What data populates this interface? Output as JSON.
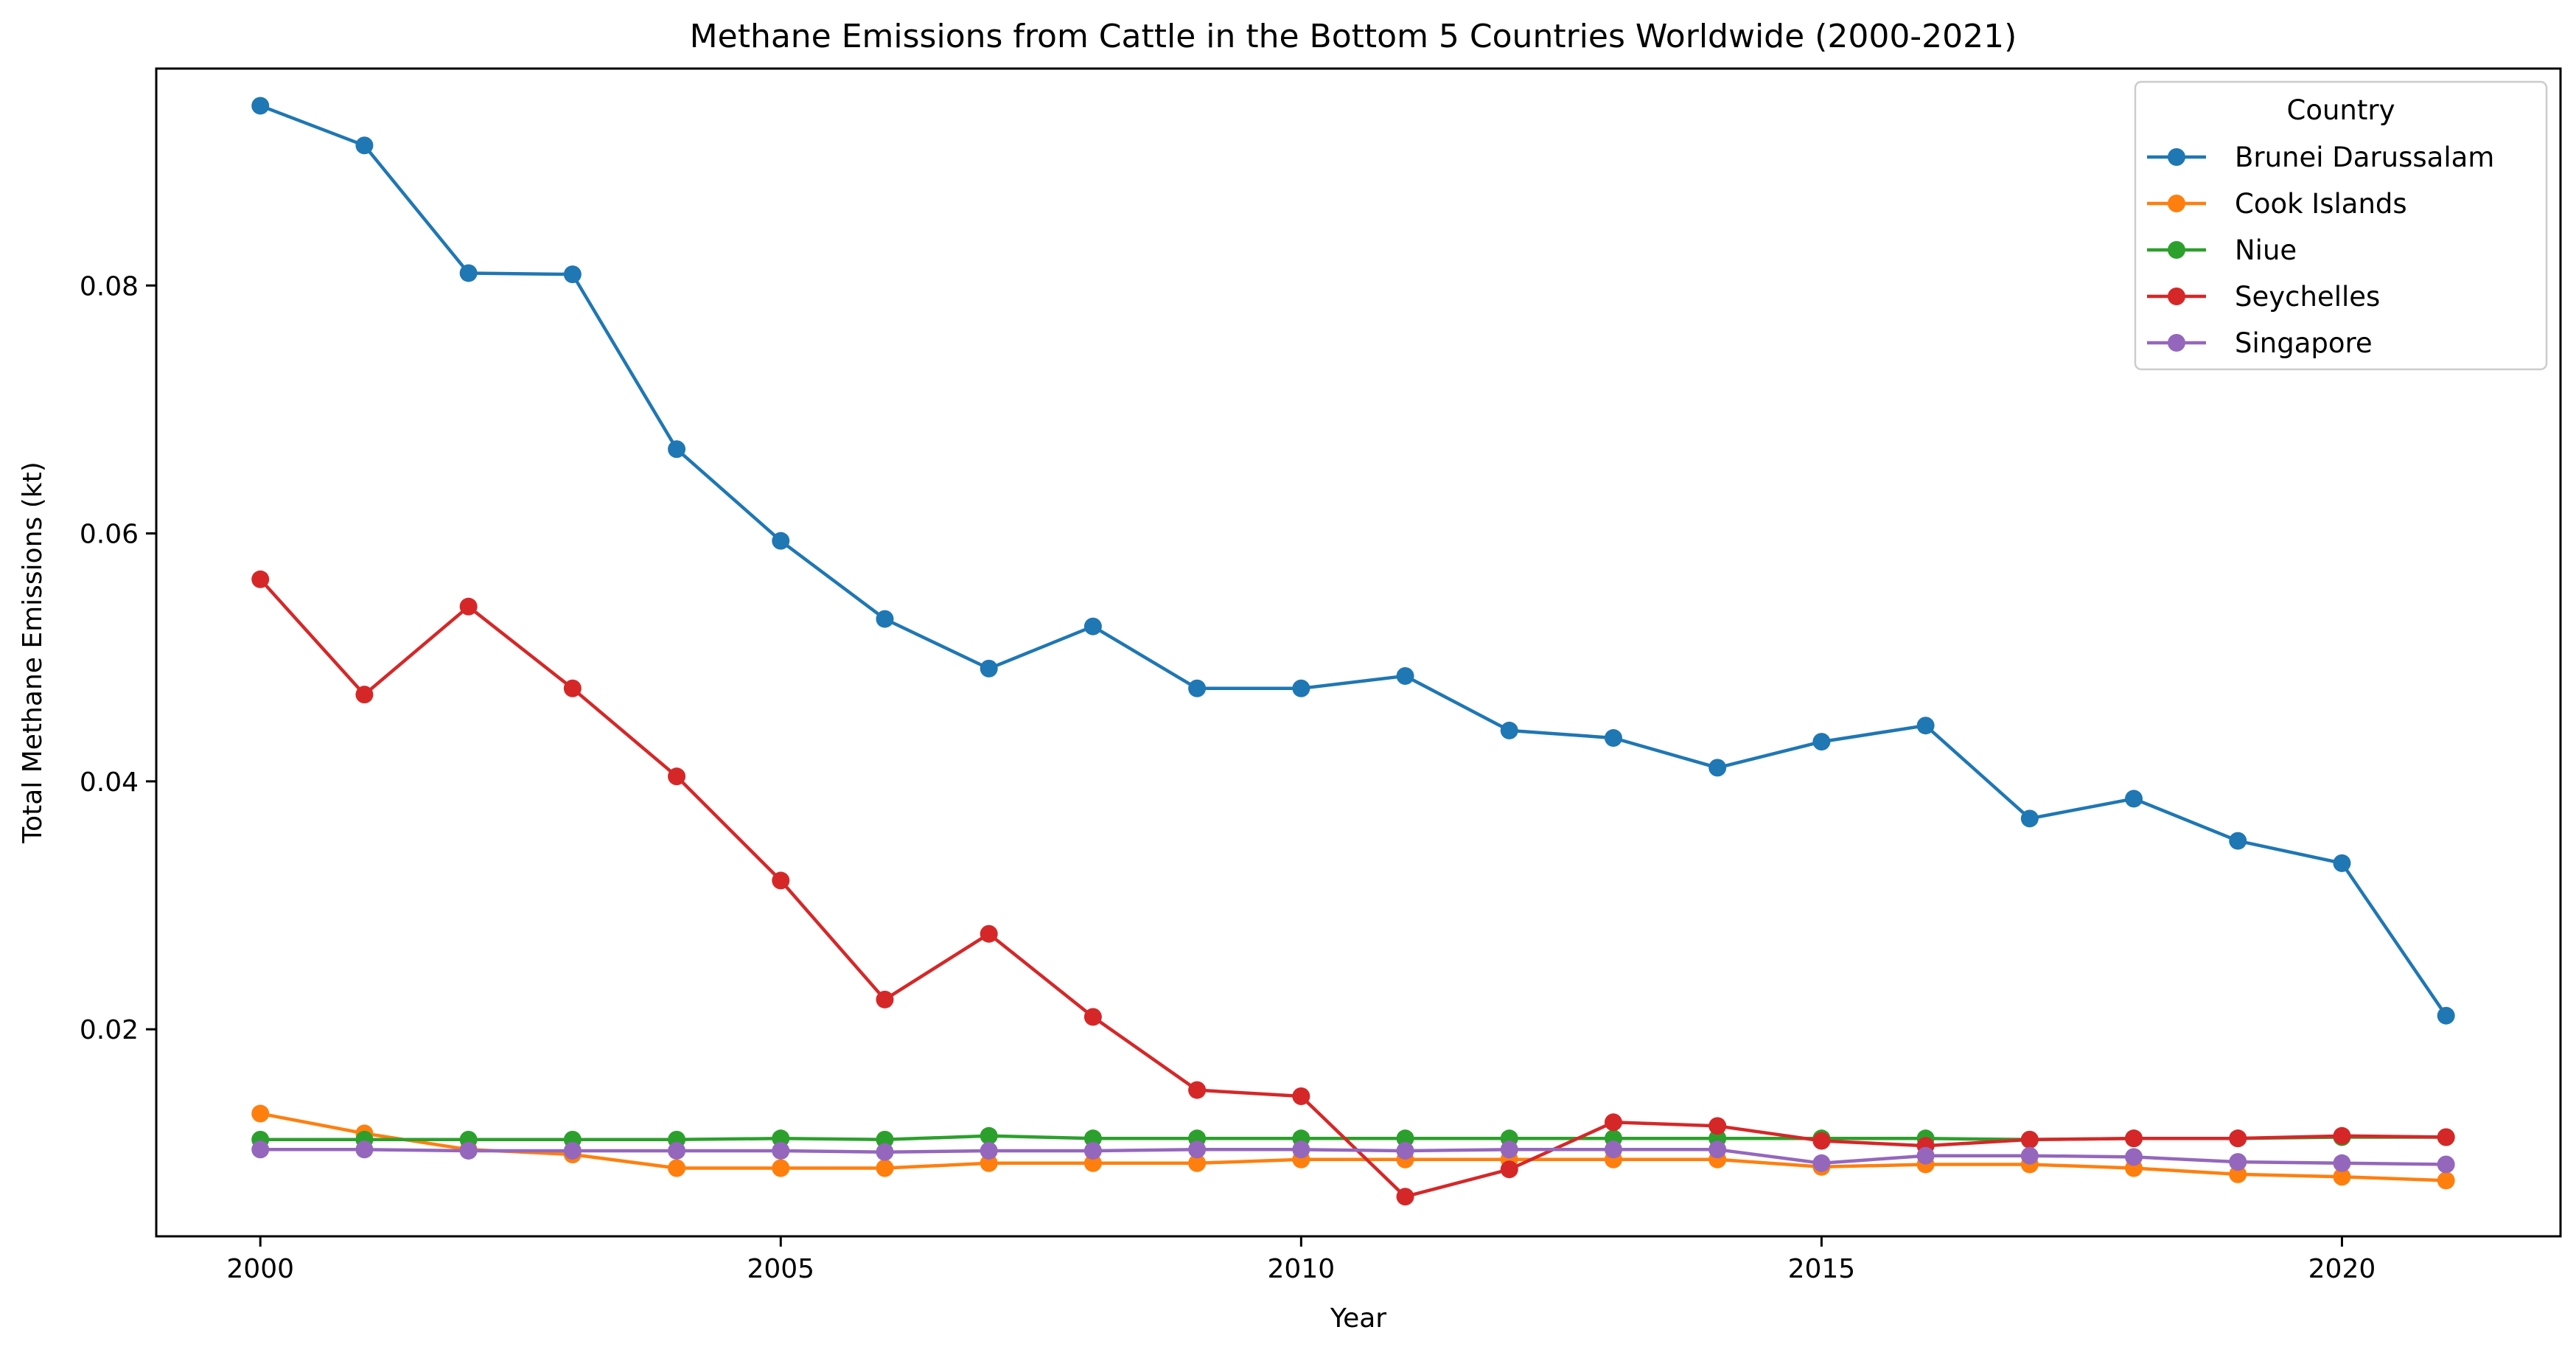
{
  "chart_data": {
    "type": "line",
    "title": "Methane Emissions from Cattle in the Bottom 5 Countries Worldwide (2000-2021)",
    "xlabel": "Year",
    "ylabel": "Total Methane Emissions (kt)",
    "xlim": [
      1999,
      2022.1
    ],
    "ylim": [
      0.0033,
      0.0975
    ],
    "xticks": [
      2000,
      2005,
      2010,
      2015,
      2020
    ],
    "xtick_labels": [
      "2000",
      "2005",
      "2010",
      "2015",
      "2020"
    ],
    "yticks": [
      0.02,
      0.04,
      0.06,
      0.08
    ],
    "ytick_labels": [
      "0.02",
      "0.04",
      "0.06",
      "0.08"
    ],
    "grid": false,
    "legend": {
      "title": "Country",
      "position": "top-right"
    },
    "x": [
      2000,
      2001,
      2002,
      2003,
      2004,
      2005,
      2006,
      2007,
      2008,
      2009,
      2010,
      2011,
      2012,
      2013,
      2014,
      2015,
      2016,
      2017,
      2018,
      2019,
      2020,
      2021
    ],
    "series": [
      {
        "name": "Brunei Darussalam",
        "color": "#1f77b4",
        "values": [
          0.0945,
          0.0913,
          0.081,
          0.0809,
          0.0668,
          0.0594,
          0.0531,
          0.0491,
          0.0525,
          0.0475,
          0.0475,
          0.0485,
          0.0441,
          0.0435,
          0.0411,
          0.0432,
          0.0445,
          0.037,
          0.0386,
          0.0352,
          0.0334,
          0.0211
        ]
      },
      {
        "name": "Cook Islands",
        "color": "#ff7f0e",
        "values": [
          0.0132,
          0.0116,
          0.0103,
          0.0099,
          0.0088,
          0.0088,
          0.0088,
          0.0092,
          0.0092,
          0.0092,
          0.0095,
          0.0095,
          0.0095,
          0.0095,
          0.0095,
          0.0089,
          0.0091,
          0.0091,
          0.0088,
          0.0083,
          0.0081,
          0.0078
        ]
      },
      {
        "name": "Niue",
        "color": "#2ca02c",
        "values": [
          0.0111,
          0.0111,
          0.0111,
          0.0111,
          0.0111,
          0.0112,
          0.0111,
          0.0114,
          0.0112,
          0.0112,
          0.0112,
          0.0112,
          0.0112,
          0.0112,
          0.0112,
          0.0112,
          0.0112,
          0.0111,
          0.0112,
          0.0112,
          0.0113,
          0.0113
        ]
      },
      {
        "name": "Seychelles",
        "color": "#d62728",
        "values": [
          0.0563,
          0.047,
          0.0541,
          0.0475,
          0.0404,
          0.032,
          0.0224,
          0.0277,
          0.021,
          0.0151,
          0.0146,
          0.0065,
          0.0087,
          0.0125,
          0.0122,
          0.011,
          0.0106,
          0.0111,
          0.0112,
          0.0112,
          0.0114,
          0.0113
        ]
      },
      {
        "name": "Singapore",
        "color": "#9467bd",
        "values": [
          0.0103,
          0.0103,
          0.0102,
          0.0102,
          0.0102,
          0.0102,
          0.0101,
          0.0102,
          0.0102,
          0.0103,
          0.0103,
          0.0102,
          0.0103,
          0.0103,
          0.0103,
          0.0092,
          0.0098,
          0.0098,
          0.0097,
          0.0093,
          0.0092,
          0.0091
        ]
      }
    ]
  }
}
